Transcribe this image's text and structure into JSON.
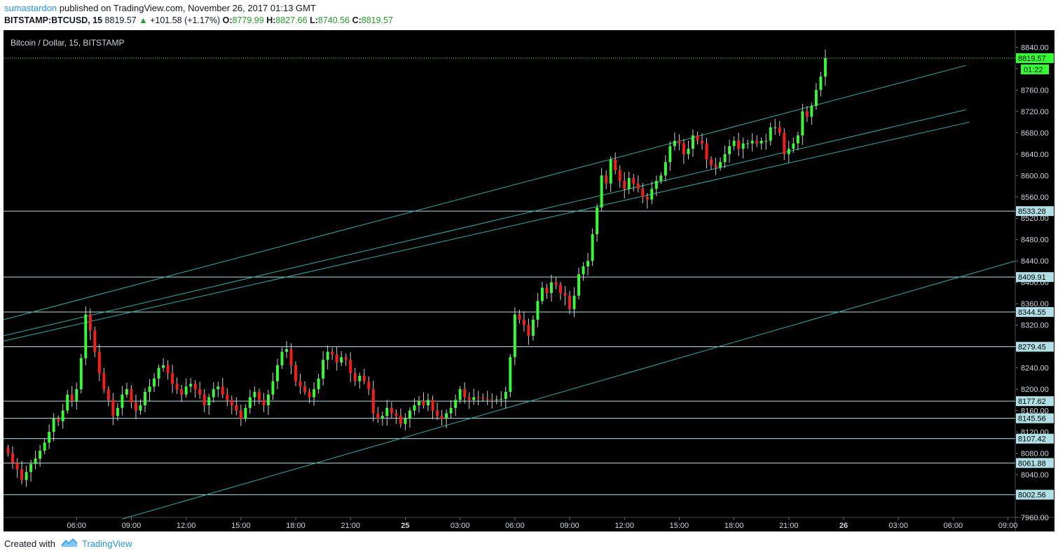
{
  "header": {
    "author": "sumastardon",
    "published_text": "published on TradingView.com, November 26, 2017 01:13 GMT",
    "symbol": "BITSTAMP:BTCUSD, 15",
    "price": "8819.57",
    "change": "+101.58 (+1.17%)",
    "o_label": "O:",
    "o": "8779.99",
    "h_label": "H:",
    "h": "8827.66",
    "l_label": "L:",
    "l": "8740.56",
    "c_label": "C:",
    "c": "8819.57"
  },
  "footer": {
    "created_with": "Created with",
    "brand": "TradingView"
  },
  "colors": {
    "background": "#000000",
    "up": "#32ff32",
    "down": "#ff1a1a",
    "trendline": "#20b2aa",
    "hline": "#b0e0e6"
  },
  "chart_data": {
    "type": "candlestick",
    "title": "Bitcoin / Dollar, 15, BITSTAMP",
    "ylim": [
      7960,
      8872
    ],
    "yticks": [
      7960,
      8000,
      8040,
      8080,
      8120,
      8160,
      8200,
      8240,
      8280,
      8320,
      8360,
      8400,
      8440,
      8480,
      8520,
      8560,
      8600,
      8640,
      8680,
      8720,
      8760,
      8800,
      8840
    ],
    "ytick_labels": [
      "7960.00",
      "8000.00",
      "8040.00",
      "8080.00",
      "8120.00",
      "8160.00",
      "8200.00",
      "8240.00",
      "8280.00",
      "8320.00",
      "8360.00",
      "8400.00",
      "8440.00",
      "8480.00",
      "8520.00",
      "8560.00",
      "8600.00",
      "8640.00",
      "8680.00",
      "8720.00",
      "8760.00",
      "8800.00",
      "8840.00"
    ],
    "xlim_hours": [
      2.0,
      57.4
    ],
    "xticks": [
      {
        "h": 6,
        "label": "06:00"
      },
      {
        "h": 9,
        "label": "09:00"
      },
      {
        "h": 12,
        "label": "12:00"
      },
      {
        "h": 15,
        "label": "15:00"
      },
      {
        "h": 18,
        "label": "18:00"
      },
      {
        "h": 21,
        "label": "21:00"
      },
      {
        "h": 24,
        "label": "25"
      },
      {
        "h": 27,
        "label": "03:00"
      },
      {
        "h": 30,
        "label": "06:00"
      },
      {
        "h": 33,
        "label": "09:00"
      },
      {
        "h": 36,
        "label": "12:00"
      },
      {
        "h": 39,
        "label": "15:00"
      },
      {
        "h": 42,
        "label": "18:00"
      },
      {
        "h": 45,
        "label": "21:00"
      },
      {
        "h": 48,
        "label": "26"
      },
      {
        "h": 51,
        "label": "03:00"
      },
      {
        "h": 54,
        "label": "06:00"
      },
      {
        "h": 57,
        "label": "09:00"
      }
    ],
    "last_price": "8819.57",
    "countdown": "01:22",
    "price_levels": [
      8533.28,
      8409.91,
      8344.55,
      8279.45,
      8177.62,
      8145.56,
      8107.42,
      8061.88,
      8002.56
    ],
    "price_level_labels": [
      "8533.28",
      "8409.91",
      "8344.55",
      "8279.45",
      "8177.62",
      "8145.56",
      "8107.42",
      "8061.88",
      "8002.56"
    ],
    "trendlines": [
      {
        "x1": 2.0,
        "y1": 8330,
        "x2": 54.7,
        "y2": 8806
      },
      {
        "x1": 2.0,
        "y1": 8300,
        "x2": 54.7,
        "y2": 8723
      },
      {
        "x1": 2.0,
        "y1": 8290,
        "x2": 54.9,
        "y2": 8700
      },
      {
        "x1": 8.5,
        "y1": 7957,
        "x2": 57.4,
        "y2": 8440
      }
    ],
    "hours_start": 2.25,
    "hours_step": 0.25,
    "closes": [
      8080,
      8062,
      8050,
      8030,
      8045,
      8060,
      8070,
      8085,
      8100,
      8120,
      8145,
      8140,
      8160,
      8190,
      8178,
      8200,
      8258,
      8340,
      8310,
      8270,
      8230,
      8200,
      8180,
      8150,
      8165,
      8190,
      8200,
      8175,
      8160,
      8170,
      8195,
      8205,
      8220,
      8240,
      8245,
      8230,
      8210,
      8200,
      8190,
      8205,
      8210,
      8200,
      8190,
      8170,
      8185,
      8200,
      8205,
      8190,
      8180,
      8170,
      8160,
      8145,
      8165,
      8185,
      8195,
      8180,
      8170,
      8190,
      8215,
      8245,
      8270,
      8275,
      8245,
      8215,
      8205,
      8195,
      8185,
      8200,
      8220,
      8255,
      8270,
      8265,
      8250,
      8260,
      8255,
      8230,
      8215,
      8225,
      8215,
      8200,
      8155,
      8145,
      8150,
      8165,
      8155,
      8150,
      8135,
      8145,
      8160,
      8170,
      8178,
      8170,
      8180,
      8160,
      8150,
      8145,
      8155,
      8165,
      8180,
      8200,
      8185,
      8180,
      8185,
      8184,
      8182,
      8181,
      8180,
      8181,
      8182,
      8195,
      8260,
      8340,
      8330,
      8320,
      8300,
      8330,
      8365,
      8390,
      8380,
      8400,
      8395,
      8380,
      8375,
      8350,
      8375,
      8415,
      8430,
      8440,
      8490,
      8540,
      8600,
      8585,
      8630,
      8610,
      8590,
      8575,
      8595,
      8585,
      8575,
      8560,
      8555,
      8575,
      8590,
      8600,
      8625,
      8655,
      8665,
      8660,
      8640,
      8650,
      8675,
      8665,
      8660,
      8630,
      8620,
      8615,
      8625,
      8640,
      8655,
      8665,
      8650,
      8660,
      8660,
      8665,
      8660,
      8665,
      8665,
      8690,
      8690,
      8680,
      8640,
      8650,
      8660,
      8675,
      8720,
      8710,
      8730,
      8760,
      8785,
      8819.57
    ],
    "axis_side": "right"
  }
}
